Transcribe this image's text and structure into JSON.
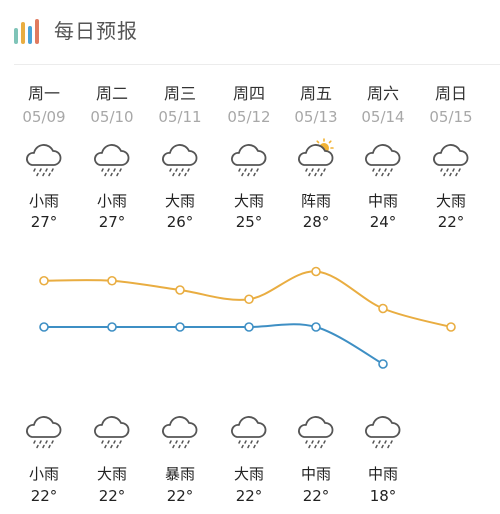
{
  "header": {
    "title": "每日预报",
    "logo_icon": "bar-chart-logo-icon"
  },
  "colors": {
    "high_line": "#e9ad41",
    "low_line": "#3e8fc4",
    "icon_stroke": "#555555"
  },
  "days": [
    {
      "day": "周一",
      "date": "05/09",
      "day_cond": "小雨",
      "high": "27°",
      "night_cond": "小雨",
      "low": "22°",
      "day_icon": "cloud-rain-icon",
      "night_icon": "cloud-rain-icon"
    },
    {
      "day": "周二",
      "date": "05/10",
      "day_cond": "小雨",
      "high": "27°",
      "night_cond": "大雨",
      "low": "22°",
      "day_icon": "cloud-rain-icon",
      "night_icon": "cloud-rain-icon"
    },
    {
      "day": "周三",
      "date": "05/11",
      "day_cond": "大雨",
      "high": "26°",
      "night_cond": "暴雨",
      "low": "22°",
      "day_icon": "cloud-rain-icon",
      "night_icon": "cloud-rain-icon"
    },
    {
      "day": "周四",
      "date": "05/12",
      "day_cond": "大雨",
      "high": "25°",
      "night_cond": "大雨",
      "low": "22°",
      "day_icon": "cloud-rain-icon",
      "night_icon": "cloud-rain-icon"
    },
    {
      "day": "周五",
      "date": "05/13",
      "day_cond": "阵雨",
      "high": "28°",
      "night_cond": "中雨",
      "low": "22°",
      "day_icon": "sun-cloud-rain-icon",
      "night_icon": "cloud-rain-icon"
    },
    {
      "day": "周六",
      "date": "05/14",
      "day_cond": "中雨",
      "high": "24°",
      "night_cond": "中雨",
      "low": "18°",
      "day_icon": "cloud-rain-icon",
      "night_icon": "cloud-rain-icon"
    },
    {
      "day": "周日",
      "date": "05/15",
      "day_cond": "大雨",
      "high": "22°",
      "night_cond": "",
      "low": "",
      "day_icon": "cloud-rain-icon",
      "night_icon": ""
    }
  ],
  "chart_data": {
    "type": "line",
    "series": [
      {
        "values": [
          27,
          27,
          26,
          25,
          28,
          24,
          22
        ]
      },
      {
        "values": [
          22,
          22,
          22,
          22,
          22,
          18
        ]
      }
    ]
  }
}
